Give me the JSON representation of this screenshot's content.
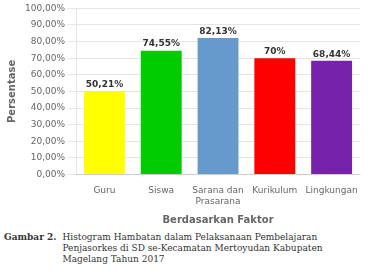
{
  "chart_data": {
    "type": "bar",
    "categories": [
      "Guru",
      "Siswa",
      "Sarana dan\nPrasarana",
      "Kurikulum",
      "Lingkungan"
    ],
    "values": [
      50.21,
      74.55,
      82.13,
      70.0,
      68.44
    ],
    "value_labels": [
      "50,21%",
      "74,55%",
      "82,13%",
      "70%",
      "68,44%"
    ],
    "data_labels": true,
    "colors": [
      "#FFFF00",
      "#00CC00",
      "#6699CC",
      "#FF0000",
      "#7722AA"
    ],
    "y_label": "Persentase",
    "x_label": "Berdasarkan Faktor",
    "ylim": [
      0,
      100
    ],
    "yticks": [
      {
        "value": 0,
        "label": "0,00%"
      },
      {
        "value": 10,
        "label": "10,00%"
      },
      {
        "value": 20,
        "label": "20,00%"
      },
      {
        "value": 30,
        "label": "30,00%"
      },
      {
        "value": 40,
        "label": "40,00%"
      },
      {
        "value": 50,
        "label": "50,00%"
      },
      {
        "value": 60,
        "label": "60,00%"
      },
      {
        "value": 70,
        "label": "70,00%"
      },
      {
        "value": 80,
        "label": "80,00%"
      },
      {
        "value": 90,
        "label": "90,00%"
      },
      {
        "value": 100,
        "label": "100,00%"
      }
    ],
    "grid": true,
    "annotations": [
      "Gambar 2.",
      "Histogram Hambatan dalam Pelaksanaan Pembelajaran",
      "Penjasorkes di SD se-Kecamatan Mertoyudan Kabupaten",
      "Magelang Tahun 2017"
    ]
  }
}
